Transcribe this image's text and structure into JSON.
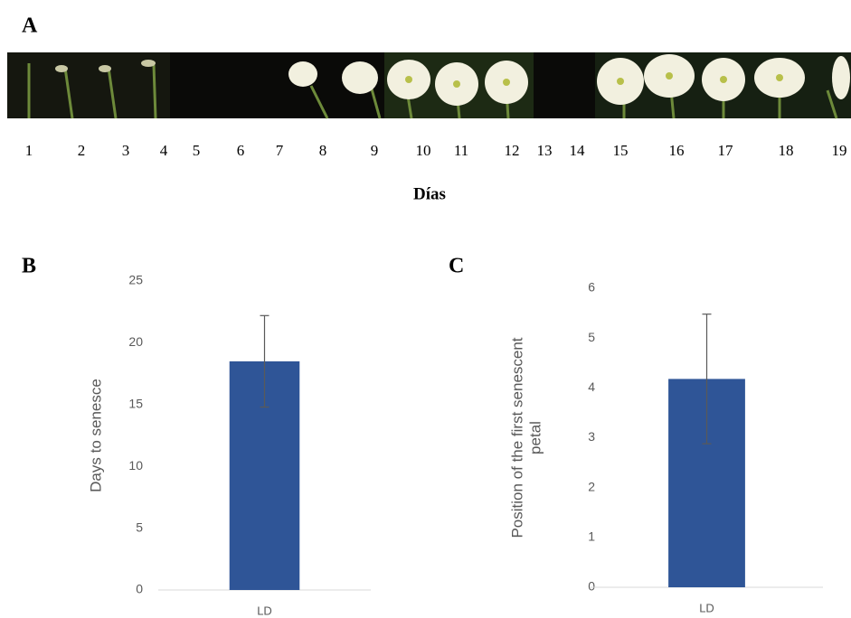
{
  "panel_labels": [
    "A",
    "B",
    "C"
  ],
  "photo_strip": {
    "days": [
      "1",
      "2",
      "3",
      "4",
      "5",
      "6",
      "7",
      "8",
      "9",
      "10",
      "11",
      "12",
      "13",
      "14",
      "15",
      "16",
      "17",
      "18",
      "19"
    ],
    "xlabel": "Días"
  },
  "chart_data": [
    {
      "type": "bar",
      "ylabel": [
        "Days to senesce"
      ],
      "categories": [
        "LD"
      ],
      "values": [
        18.5
      ],
      "errors": [
        3.7
      ],
      "color": "#2f5597",
      "ylim": [
        0,
        25
      ],
      "yticks": [
        0,
        5,
        10,
        15,
        20,
        25
      ],
      "grid": false
    },
    {
      "type": "bar",
      "ylabel": [
        "Position of the first senescent",
        "petal"
      ],
      "categories": [
        "LD"
      ],
      "values": [
        4.18
      ],
      "errors": [
        1.3
      ],
      "color": "#2f5597",
      "ylim": [
        0,
        6
      ],
      "yticks": [
        0,
        1,
        2,
        3,
        4,
        5,
        6
      ],
      "grid": false
    }
  ]
}
